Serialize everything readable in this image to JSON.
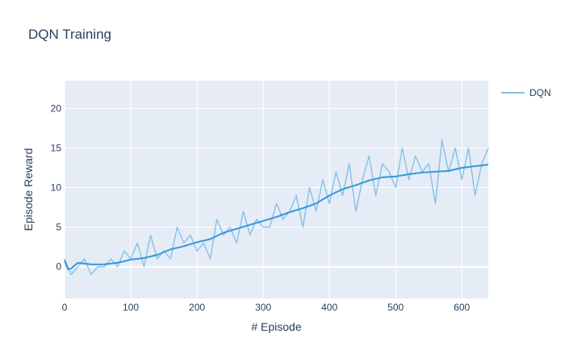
{
  "chart_data": {
    "type": "line",
    "title": "DQN Training",
    "xlabel": "# Episode",
    "ylabel": "Episode Reward",
    "xlim": [
      0,
      640
    ],
    "ylim": [
      -4,
      23.5
    ],
    "x_ticks": [
      0,
      100,
      200,
      300,
      400,
      500,
      600
    ],
    "y_ticks": [
      0,
      5,
      10,
      15,
      20
    ],
    "grid": true,
    "legend_position": "top-right",
    "colors": {
      "raw": "#85c1e9",
      "smoothed": "#3498db",
      "plot_bg": "#e5ecf6",
      "grid": "#ffffff"
    },
    "series": [
      {
        "name": "DQN",
        "role": "raw",
        "x": [
          0,
          10,
          20,
          30,
          40,
          50,
          60,
          70,
          80,
          90,
          100,
          110,
          120,
          130,
          140,
          150,
          160,
          170,
          180,
          190,
          200,
          210,
          220,
          230,
          240,
          250,
          260,
          270,
          280,
          290,
          300,
          310,
          320,
          330,
          340,
          350,
          360,
          370,
          380,
          390,
          400,
          410,
          420,
          430,
          440,
          450,
          460,
          470,
          480,
          490,
          500,
          510,
          520,
          530,
          540,
          550,
          560,
          570,
          580,
          590,
          600,
          610,
          620,
          630,
          640
        ],
        "y": [
          1,
          -1,
          0,
          1,
          -1,
          0,
          0,
          1,
          0,
          2,
          1,
          3,
          0,
          4,
          1,
          2,
          1,
          5,
          3,
          4,
          2,
          3,
          1,
          6,
          4,
          5,
          3,
          7,
          4,
          6,
          5,
          5,
          8,
          6,
          7,
          9,
          5,
          10,
          7,
          11,
          8,
          12,
          9,
          13,
          7,
          11,
          14,
          9,
          13,
          12,
          10,
          15,
          11,
          14,
          12,
          13,
          8,
          16,
          12,
          15,
          11,
          15,
          9,
          13,
          15
        ]
      },
      {
        "name": "",
        "role": "smoothed",
        "x": [
          0,
          5,
          10,
          20,
          40,
          60,
          80,
          100,
          120,
          140,
          160,
          180,
          200,
          220,
          240,
          260,
          280,
          300,
          320,
          340,
          360,
          380,
          400,
          420,
          440,
          460,
          480,
          500,
          520,
          540,
          560,
          580,
          600,
          620,
          640
        ],
        "y": [
          0.8,
          -0.3,
          -0.2,
          0.5,
          0.3,
          0.3,
          0.5,
          0.9,
          1.1,
          1.5,
          2.2,
          2.6,
          3.1,
          3.5,
          4.3,
          4.8,
          5.3,
          5.8,
          6.3,
          6.9,
          7.4,
          8.0,
          9.0,
          9.8,
          10.3,
          10.9,
          11.3,
          11.4,
          11.7,
          11.9,
          12.0,
          12.1,
          12.5,
          12.7,
          12.9
        ]
      }
    ]
  }
}
